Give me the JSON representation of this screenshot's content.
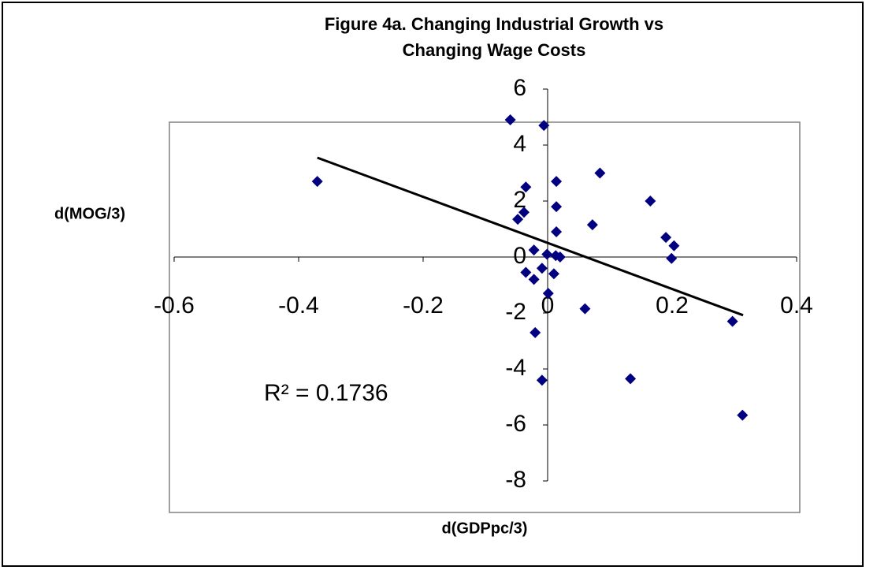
{
  "chart_data": {
    "type": "scatter",
    "title_lines": [
      "Figure 4a. Changing Industrial Growth vs",
      "Changing Wage Costs"
    ],
    "x_label": "d(GDPpc/3)",
    "y_label": "d(MOG/3)",
    "annotation": "R² = 0.1736",
    "xlim": [
      -0.6,
      0.4
    ],
    "xticks": [
      -0.6,
      -0.4,
      -0.2,
      0,
      0.2,
      0.4
    ],
    "ylim": [
      -8,
      6
    ],
    "yticks": [
      -8,
      -6,
      -4,
      -2,
      0,
      2,
      4,
      6
    ],
    "color": "#000080",
    "x": [
      -0.37,
      -0.06,
      -0.006,
      -0.035,
      -0.038,
      -0.048,
      0.014,
      0.014,
      0.014,
      0.084,
      0.072,
      0.165,
      0.19,
      0.203,
      0.199,
      -0.022,
      -0.001,
      0.013,
      0.02,
      -0.009,
      -0.035,
      -0.022,
      0.01,
      0.001,
      0.06,
      -0.02,
      -0.009,
      0.133,
      0.297,
      0.313
    ],
    "values": [
      2.7,
      4.9,
      4.7,
      2.5,
      1.6,
      1.35,
      2.7,
      1.8,
      0.9,
      3.0,
      1.15,
      2.0,
      0.7,
      0.4,
      -0.05,
      0.25,
      0.1,
      0.05,
      0.0,
      -0.4,
      -0.55,
      -0.8,
      -0.6,
      -1.3,
      -1.85,
      -2.7,
      -4.4,
      -4.35,
      -2.3,
      -5.65
    ],
    "trendline": {
      "x": [
        -0.37,
        0.314
      ],
      "y": [
        3.55,
        -2.08
      ],
      "color": "#000000"
    }
  }
}
